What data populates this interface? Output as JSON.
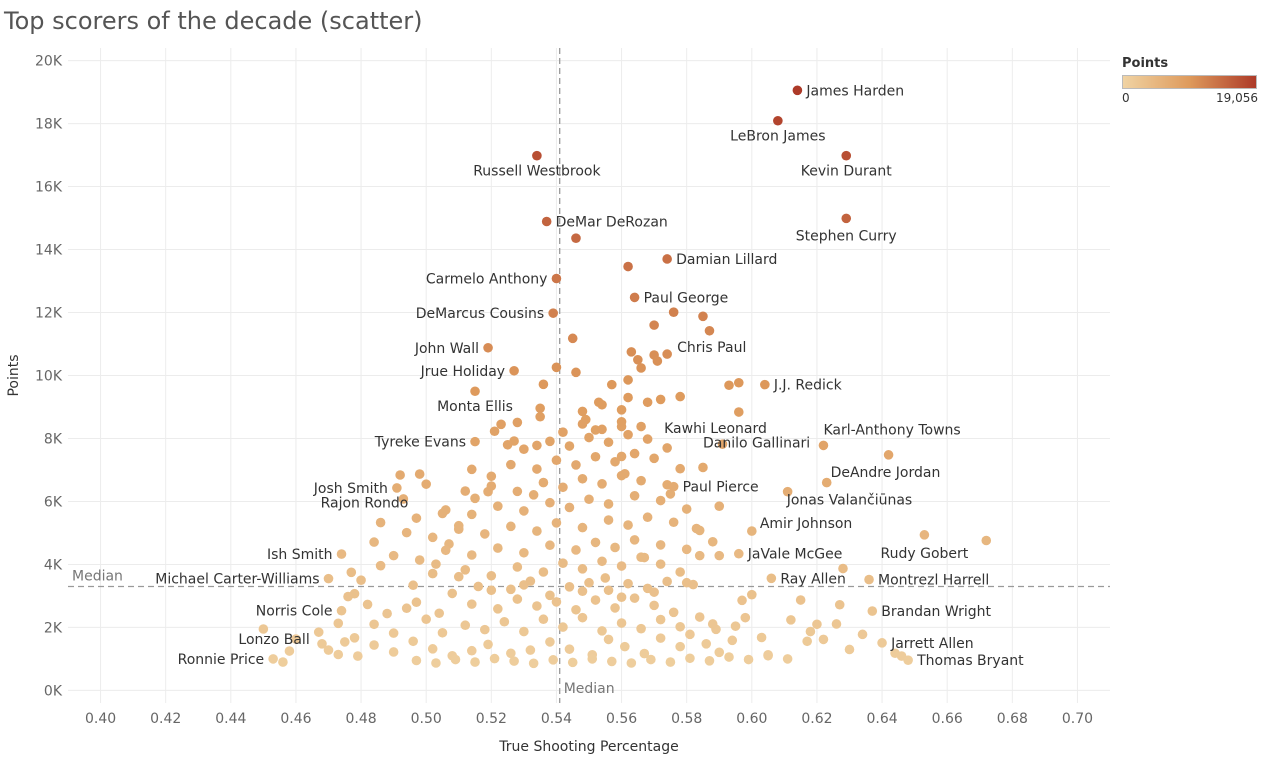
{
  "page": {
    "title": "Top scorers of the decade (scatter)"
  },
  "legend": {
    "title": "Points",
    "min_label": "0",
    "max_label": "19,056",
    "color_min": "#f0d3a3",
    "color_mid": "#de9a5c",
    "color_max": "#ad3a28"
  },
  "chart_data": {
    "type": "scatter",
    "title": "Top scorers of the decade (scatter)",
    "xlabel": "True Shooting Percentage",
    "ylabel": "Points",
    "xlim": [
      0.39,
      0.71
    ],
    "ylim": [
      -400,
      20400
    ],
    "x_ticks": [
      0.4,
      0.42,
      0.44,
      0.46,
      0.48,
      0.5,
      0.52,
      0.54,
      0.56,
      0.58,
      0.6,
      0.62,
      0.64,
      0.66,
      0.68,
      0.7
    ],
    "x_tick_labels": [
      "0.40",
      "0.42",
      "0.44",
      "0.46",
      "0.48",
      "0.50",
      "0.52",
      "0.54",
      "0.56",
      "0.58",
      "0.60",
      "0.62",
      "0.64",
      "0.66",
      "0.68",
      "0.70"
    ],
    "y_ticks": [
      0,
      2000,
      4000,
      6000,
      8000,
      10000,
      12000,
      14000,
      16000,
      18000,
      20000
    ],
    "y_tick_labels": [
      "0K",
      "2K",
      "4K",
      "6K",
      "8K",
      "10K",
      "12K",
      "14K",
      "16K",
      "18K",
      "20K"
    ],
    "grid": true,
    "color_encoding": "Points",
    "color_range": [
      0,
      19056
    ],
    "median_x": 0.541,
    "median_y": 3300,
    "median_label": "Median",
    "labeled_points": [
      {
        "name": "James Harden",
        "x": 0.614,
        "y": 19056
      },
      {
        "name": "LeBron James",
        "x": 0.608,
        "y": 18090
      },
      {
        "name": "Russell Westbrook",
        "x": 0.534,
        "y": 16980
      },
      {
        "name": "Kevin Durant",
        "x": 0.629,
        "y": 16980
      },
      {
        "name": "Stephen Curry",
        "x": 0.629,
        "y": 14990
      },
      {
        "name": "DeMar DeRozan",
        "x": 0.537,
        "y": 14890
      },
      {
        "name": "Damian Lillard",
        "x": 0.574,
        "y": 13700
      },
      {
        "name": "Carmelo Anthony",
        "x": 0.54,
        "y": 13080
      },
      {
        "name": "Paul George",
        "x": 0.564,
        "y": 12480
      },
      {
        "name": "DeMarcus Cousins",
        "x": 0.539,
        "y": 11980
      },
      {
        "name": "John Wall",
        "x": 0.519,
        "y": 10880
      },
      {
        "name": "Chris Paul",
        "x": 0.574,
        "y": 10680
      },
      {
        "name": "Jrue Holiday",
        "x": 0.527,
        "y": 10150
      },
      {
        "name": "J.J. Redick",
        "x": 0.604,
        "y": 9710
      },
      {
        "name": "Monta Ellis",
        "x": 0.515,
        "y": 9500
      },
      {
        "name": "Kawhi Leonard",
        "x": 0.591,
        "y": 7820
      },
      {
        "name": "Karl-Anthony Towns",
        "x": 0.622,
        "y": 7780
      },
      {
        "name": "Tyreke Evans",
        "x": 0.515,
        "y": 7900
      },
      {
        "name": "Danilo Gallinari",
        "x": 0.585,
        "y": 7080
      },
      {
        "name": "DeAndre Jordan",
        "x": 0.642,
        "y": 7480
      },
      {
        "name": "Josh Smith",
        "x": 0.491,
        "y": 6430
      },
      {
        "name": "Paul Pierce",
        "x": 0.576,
        "y": 6470
      },
      {
        "name": "Jonas Valančiūnas",
        "x": 0.623,
        "y": 6600
      },
      {
        "name": "Rajon Rondo",
        "x": 0.486,
        "y": 5330
      },
      {
        "name": "Amir Johnson",
        "x": 0.6,
        "y": 5060
      },
      {
        "name": "Rudy Gobert",
        "x": 0.653,
        "y": 4940
      },
      {
        "name": "Ish Smith",
        "x": 0.474,
        "y": 4330
      },
      {
        "name": "JaVale McGee",
        "x": 0.596,
        "y": 4340
      },
      {
        "name": "Michael Carter-Williams",
        "x": 0.47,
        "y": 3550
      },
      {
        "name": "Ray Allen",
        "x": 0.606,
        "y": 3560
      },
      {
        "name": "Montrezl Harrell",
        "x": 0.636,
        "y": 3520
      },
      {
        "name": "Norris Cole",
        "x": 0.474,
        "y": 2530
      },
      {
        "name": "Brandan Wright",
        "x": 0.637,
        "y": 2520
      },
      {
        "name": "Lonzo Ball",
        "x": 0.467,
        "y": 1850
      },
      {
        "name": "Jarrett Allen",
        "x": 0.64,
        "y": 1510
      },
      {
        "name": "Ronnie Price",
        "x": 0.453,
        "y": 1000
      },
      {
        "name": "Thomas Bryant",
        "x": 0.648,
        "y": 960
      }
    ],
    "other_points": [
      [
        0.672,
        4760
      ],
      [
        0.644,
        1180
      ],
      [
        0.646,
        1090
      ],
      [
        0.628,
        3870
      ],
      [
        0.627,
        2720
      ],
      [
        0.62,
        2100
      ],
      [
        0.618,
        1870
      ],
      [
        0.615,
        2870
      ],
      [
        0.611,
        6310
      ],
      [
        0.605,
        1130
      ],
      [
        0.603,
        1680
      ],
      [
        0.598,
        2310
      ],
      [
        0.597,
        2860
      ],
      [
        0.596,
        9770
      ],
      [
        0.596,
        8840
      ],
      [
        0.594,
        1590
      ],
      [
        0.593,
        9690
      ],
      [
        0.59,
        1210
      ],
      [
        0.589,
        1940
      ],
      [
        0.588,
        2110
      ],
      [
        0.59,
        4280
      ],
      [
        0.59,
        5850
      ],
      [
        0.587,
        11420
      ],
      [
        0.585,
        11880
      ],
      [
        0.584,
        4280
      ],
      [
        0.583,
        5140
      ],
      [
        0.58,
        3420
      ],
      [
        0.578,
        9330
      ],
      [
        0.578,
        7040
      ],
      [
        0.576,
        12010
      ],
      [
        0.575,
        6240
      ],
      [
        0.572,
        9240
      ],
      [
        0.57,
        10650
      ],
      [
        0.571,
        10460
      ],
      [
        0.57,
        11600
      ],
      [
        0.568,
        9150
      ],
      [
        0.567,
        4220
      ],
      [
        0.565,
        10500
      ],
      [
        0.566,
        10240
      ],
      [
        0.562,
        13460
      ],
      [
        0.563,
        10750
      ],
      [
        0.562,
        9860
      ],
      [
        0.562,
        9300
      ],
      [
        0.56,
        8380
      ],
      [
        0.561,
        6880
      ],
      [
        0.56,
        7430
      ],
      [
        0.557,
        9710
      ],
      [
        0.553,
        9150
      ],
      [
        0.552,
        8270
      ],
      [
        0.549,
        8600
      ],
      [
        0.546,
        14360
      ],
      [
        0.545,
        11180
      ],
      [
        0.546,
        10100
      ],
      [
        0.54,
        10260
      ],
      [
        0.536,
        9720
      ],
      [
        0.535,
        8960
      ],
      [
        0.535,
        8690
      ],
      [
        0.534,
        7780
      ],
      [
        0.533,
        6210
      ],
      [
        0.528,
        8510
      ],
      [
        0.527,
        7920
      ],
      [
        0.525,
        7800
      ],
      [
        0.523,
        8450
      ],
      [
        0.521,
        8230
      ],
      [
        0.52,
        6800
      ],
      [
        0.519,
        6310
      ],
      [
        0.514,
        7020
      ],
      [
        0.515,
        6100
      ],
      [
        0.512,
        6330
      ],
      [
        0.51,
        5230
      ],
      [
        0.507,
        4650
      ],
      [
        0.505,
        5620
      ],
      [
        0.503,
        4010
      ],
      [
        0.5,
        6550
      ],
      [
        0.498,
        6870
      ],
      [
        0.497,
        5470
      ],
      [
        0.493,
        6080
      ],
      [
        0.492,
        6840
      ],
      [
        0.486,
        3960
      ],
      [
        0.484,
        4710
      ],
      [
        0.48,
        3500
      ],
      [
        0.478,
        3070
      ],
      [
        0.477,
        3750
      ],
      [
        0.473,
        2130
      ],
      [
        0.473,
        1140
      ],
      [
        0.468,
        1480
      ],
      [
        0.46,
        1630
      ],
      [
        0.458,
        1250
      ],
      [
        0.456,
        900
      ],
      [
        0.45,
        1950
      ],
      [
        0.497,
        2800
      ],
      [
        0.504,
        2450
      ],
      [
        0.51,
        3610
      ],
      [
        0.52,
        3180
      ],
      [
        0.53,
        3350
      ],
      [
        0.548,
        3150
      ],
      [
        0.555,
        3570
      ],
      [
        0.56,
        2960
      ],
      [
        0.57,
        3120
      ],
      [
        0.582,
        3360
      ],
      [
        0.6,
        3040
      ],
      [
        0.612,
        2240
      ],
      [
        0.622,
        1620
      ],
      [
        0.63,
        1300
      ],
      [
        0.634,
        1780
      ],
      [
        0.626,
        2110
      ],
      [
        0.617,
        1560
      ],
      [
        0.595,
        2040
      ],
      [
        0.586,
        1480
      ],
      [
        0.581,
        1780
      ],
      [
        0.578,
        1390
      ],
      [
        0.572,
        1660
      ],
      [
        0.567,
        1170
      ],
      [
        0.561,
        1390
      ],
      [
        0.556,
        1620
      ],
      [
        0.551,
        1130
      ],
      [
        0.544,
        1310
      ],
      [
        0.538,
        1540
      ],
      [
        0.532,
        1280
      ],
      [
        0.526,
        1180
      ],
      [
        0.519,
        1460
      ],
      [
        0.514,
        1260
      ],
      [
        0.508,
        1100
      ],
      [
        0.502,
        1320
      ],
      [
        0.496,
        1560
      ],
      [
        0.49,
        1220
      ],
      [
        0.484,
        1440
      ],
      [
        0.479,
        1090
      ],
      [
        0.475,
        1540
      ],
      [
        0.47,
        1280
      ],
      [
        0.505,
        1830
      ],
      [
        0.512,
        2070
      ],
      [
        0.518,
        1930
      ],
      [
        0.524,
        2180
      ],
      [
        0.53,
        1870
      ],
      [
        0.536,
        2260
      ],
      [
        0.542,
        2010
      ],
      [
        0.548,
        2310
      ],
      [
        0.554,
        1890
      ],
      [
        0.56,
        2140
      ],
      [
        0.566,
        1960
      ],
      [
        0.572,
        2250
      ],
      [
        0.578,
        2020
      ],
      [
        0.584,
        2330
      ],
      [
        0.514,
        2740
      ],
      [
        0.522,
        2590
      ],
      [
        0.528,
        2900
      ],
      [
        0.534,
        2680
      ],
      [
        0.54,
        2810
      ],
      [
        0.546,
        2560
      ],
      [
        0.552,
        2870
      ],
      [
        0.558,
        2620
      ],
      [
        0.564,
        2930
      ],
      [
        0.57,
        2700
      ],
      [
        0.576,
        2480
      ],
      [
        0.508,
        3080
      ],
      [
        0.516,
        3300
      ],
      [
        0.526,
        3210
      ],
      [
        0.532,
        3470
      ],
      [
        0.538,
        3020
      ],
      [
        0.544,
        3290
      ],
      [
        0.55,
        3420
      ],
      [
        0.556,
        3180
      ],
      [
        0.562,
        3390
      ],
      [
        0.568,
        3240
      ],
      [
        0.574,
        3460
      ],
      [
        0.496,
        3340
      ],
      [
        0.502,
        3710
      ],
      [
        0.512,
        3830
      ],
      [
        0.52,
        3640
      ],
      [
        0.528,
        3920
      ],
      [
        0.536,
        3760
      ],
      [
        0.542,
        4040
      ],
      [
        0.548,
        3860
      ],
      [
        0.554,
        4100
      ],
      [
        0.56,
        3950
      ],
      [
        0.566,
        4230
      ],
      [
        0.572,
        4010
      ],
      [
        0.578,
        3760
      ],
      [
        0.49,
        4280
      ],
      [
        0.498,
        4140
      ],
      [
        0.506,
        4450
      ],
      [
        0.514,
        4300
      ],
      [
        0.522,
        4520
      ],
      [
        0.53,
        4370
      ],
      [
        0.538,
        4610
      ],
      [
        0.546,
        4460
      ],
      [
        0.552,
        4700
      ],
      [
        0.558,
        4540
      ],
      [
        0.564,
        4780
      ],
      [
        0.572,
        4620
      ],
      [
        0.58,
        4480
      ],
      [
        0.588,
        4720
      ],
      [
        0.494,
        5010
      ],
      [
        0.502,
        4860
      ],
      [
        0.51,
        5120
      ],
      [
        0.518,
        4970
      ],
      [
        0.526,
        5210
      ],
      [
        0.534,
        5060
      ],
      [
        0.54,
        5320
      ],
      [
        0.548,
        5170
      ],
      [
        0.556,
        5410
      ],
      [
        0.562,
        5250
      ],
      [
        0.568,
        5500
      ],
      [
        0.576,
        5340
      ],
      [
        0.584,
        5080
      ],
      [
        0.506,
        5730
      ],
      [
        0.514,
        5590
      ],
      [
        0.522,
        5850
      ],
      [
        0.53,
        5700
      ],
      [
        0.538,
        5960
      ],
      [
        0.544,
        5810
      ],
      [
        0.55,
        6070
      ],
      [
        0.556,
        5920
      ],
      [
        0.564,
        6180
      ],
      [
        0.572,
        6030
      ],
      [
        0.58,
        5760
      ],
      [
        0.52,
        6490
      ],
      [
        0.528,
        6320
      ],
      [
        0.536,
        6600
      ],
      [
        0.542,
        6450
      ],
      [
        0.548,
        6720
      ],
      [
        0.554,
        6560
      ],
      [
        0.56,
        6820
      ],
      [
        0.566,
        6660
      ],
      [
        0.574,
        6530
      ],
      [
        0.526,
        7170
      ],
      [
        0.534,
        7030
      ],
      [
        0.54,
        7310
      ],
      [
        0.546,
        7160
      ],
      [
        0.552,
        7420
      ],
      [
        0.558,
        7260
      ],
      [
        0.564,
        7520
      ],
      [
        0.57,
        7370
      ],
      [
        0.53,
        7660
      ],
      [
        0.538,
        7910
      ],
      [
        0.544,
        7760
      ],
      [
        0.55,
        8030
      ],
      [
        0.556,
        7880
      ],
      [
        0.562,
        8120
      ],
      [
        0.568,
        7980
      ],
      [
        0.574,
        7700
      ],
      [
        0.542,
        8200
      ],
      [
        0.548,
        8460
      ],
      [
        0.554,
        8290
      ],
      [
        0.56,
        8530
      ],
      [
        0.566,
        8380
      ],
      [
        0.548,
        8860
      ],
      [
        0.554,
        9070
      ],
      [
        0.56,
        8910
      ],
      [
        0.5,
        2260
      ],
      [
        0.494,
        2610
      ],
      [
        0.488,
        2440
      ],
      [
        0.482,
        2730
      ],
      [
        0.476,
        2980
      ],
      [
        0.49,
        1820
      ],
      [
        0.484,
        2100
      ],
      [
        0.478,
        1670
      ],
      [
        0.497,
        950
      ],
      [
        0.503,
        870
      ],
      [
        0.509,
        980
      ],
      [
        0.515,
        900
      ],
      [
        0.521,
        1010
      ],
      [
        0.527,
        930
      ],
      [
        0.533,
        860
      ],
      [
        0.539,
        970
      ],
      [
        0.545,
        890
      ],
      [
        0.551,
        1000
      ],
      [
        0.557,
        920
      ],
      [
        0.563,
        870
      ],
      [
        0.569,
        980
      ],
      [
        0.575,
        900
      ],
      [
        0.581,
        1020
      ],
      [
        0.587,
        940
      ],
      [
        0.593,
        1060
      ],
      [
        0.599,
        980
      ],
      [
        0.605,
        1100
      ],
      [
        0.611,
        1000
      ]
    ]
  }
}
